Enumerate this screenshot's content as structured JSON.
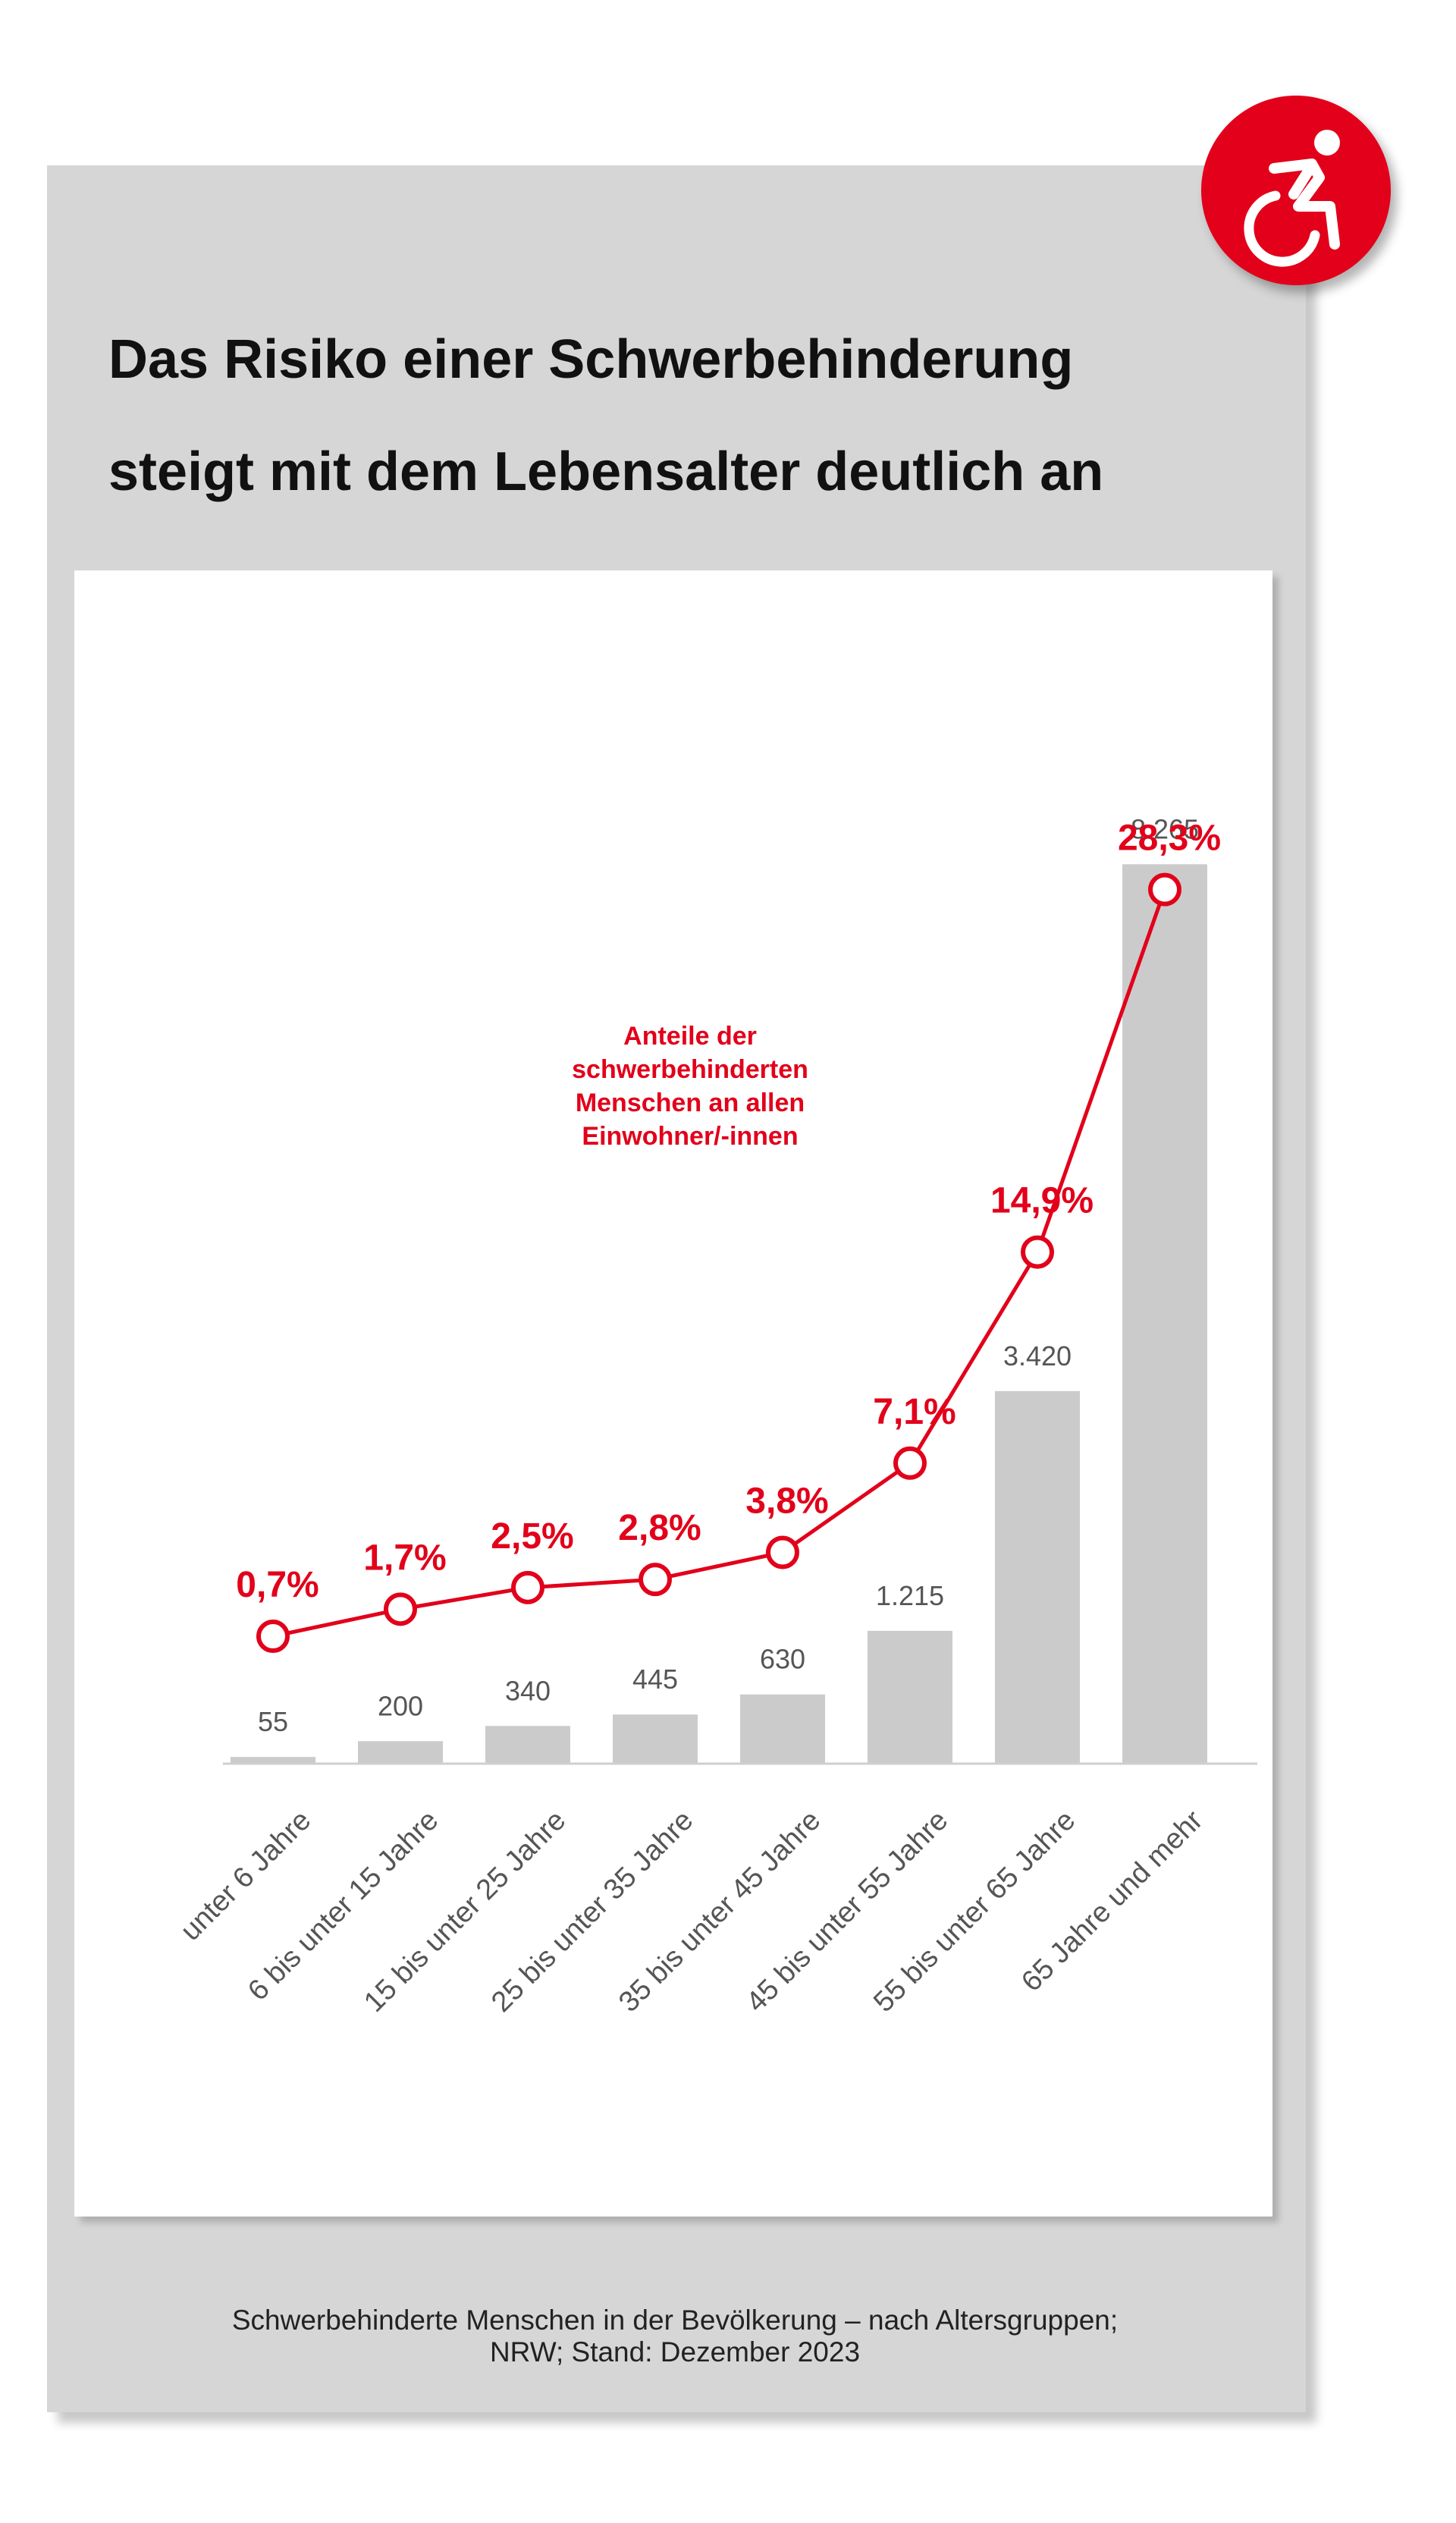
{
  "title_lines": [
    "Das Risiko einer Schwerbehinderung",
    "steigt mit dem Lebensalter deutlich an"
  ],
  "badge": {
    "icon": "wheelchair-icon",
    "color": "#e2001a"
  },
  "source_lines": [
    "Schwerbehinderte Menschen in der Bevölkerung – nach Altersgruppen;",
    "NRW; Stand: Dezember 2023"
  ],
  "colors": {
    "bar": "#cbcbcb",
    "line": "#e2001a",
    "bar_label": "#555555"
  },
  "chart_data": {
    "type": "bar",
    "categories": [
      "unter 6 Jahre",
      "6 bis unter 15 Jahre",
      "15 bis unter 25 Jahre",
      "25 bis unter 35 Jahre",
      "35 bis unter 45 Jahre",
      "45 bis unter 55 Jahre",
      "55 bis unter 65 Jahre",
      "65 Jahre und mehr"
    ],
    "bar_values": [
      55,
      200,
      340,
      445,
      630,
      1215,
      3420,
      8265
    ],
    "bar_labels": [
      "55",
      "200",
      "340",
      "445",
      "630",
      "1.215",
      "3.420",
      "8.265"
    ],
    "line_values": [
      0.7,
      1.7,
      2.5,
      2.8,
      3.8,
      7.1,
      14.9,
      28.3
    ],
    "line_labels": [
      "0,7%",
      "1,7%",
      "2,5%",
      "2,8%",
      "3,8%",
      "7,1%",
      "14,9%",
      "28,3%"
    ],
    "line_series_label": [
      "Anteile der",
      "schwerbehinderten",
      "Menschen an allen",
      "Einwohner/-innen"
    ],
    "axes": {
      "bar_ylim": [
        0,
        9000
      ],
      "line_ylim": [
        0,
        30
      ]
    },
    "title": "",
    "xlabel": "",
    "ylabel": ""
  }
}
